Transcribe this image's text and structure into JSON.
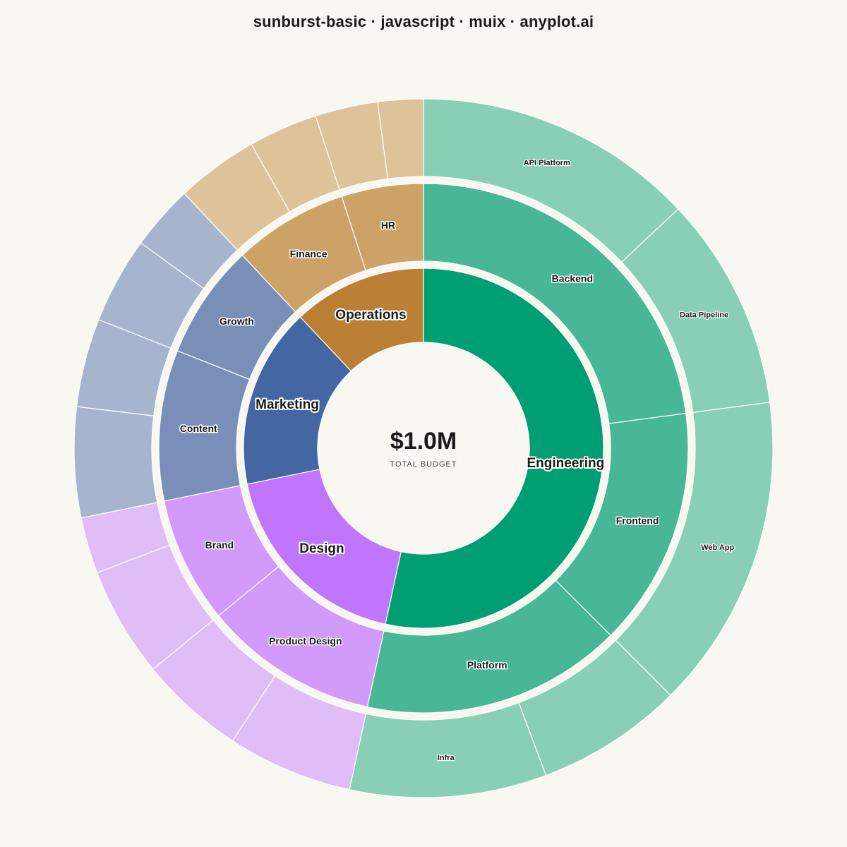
{
  "chart_data": {
    "type": "sunburst",
    "title": "sunburst-basic · javascript · muix · anyplot.ai",
    "center": {
      "value": "$1.0M",
      "caption": "TOTAL BUDGET"
    },
    "colors": {
      "background": "#f9f7f1",
      "separator": "#ffffff",
      "Engineering": [
        "#009e73",
        "#47b796",
        "#89cfb6"
      ],
      "Design": [
        "#c175fc",
        "#d29afa",
        "#e1bdf7"
      ],
      "Marketing": [
        "#4467a3",
        "#798fb8",
        "#a7b4cd"
      ],
      "Operations": [
        "#bb8034",
        "#cca267",
        "#dec39a"
      ]
    },
    "departments": [
      {
        "name": "Engineering",
        "value": 534,
        "teams": [
          {
            "name": "Backend",
            "value": 229,
            "projects": [
              {
                "name": "API Platform",
                "value": 130
              },
              {
                "name": "Data Pipeline",
                "value": 99
              }
            ]
          },
          {
            "name": "Frontend",
            "value": 146,
            "projects": [
              {
                "name": "Web App",
                "value": 146
              }
            ]
          },
          {
            "name": "Platform",
            "value": 159,
            "projects": [
              {
                "name": "",
                "value": 68
              },
              {
                "name": "Infra",
                "value": 91
              }
            ]
          }
        ]
      },
      {
        "name": "Design",
        "value": 184,
        "teams": [
          {
            "name": "Product Design",
            "value": 107,
            "projects": [
              {
                "name": "",
                "value": 58
              },
              {
                "name": "",
                "value": 49
              }
            ]
          },
          {
            "name": "Brand",
            "value": 77,
            "projects": [
              {
                "name": "",
                "value": 51
              },
              {
                "name": "",
                "value": 26
              }
            ]
          }
        ]
      },
      {
        "name": "Marketing",
        "value": 162,
        "teams": [
          {
            "name": "Content",
            "value": 92,
            "projects": [
              {
                "name": "",
                "value": 51
              },
              {
                "name": "",
                "value": 41
              }
            ]
          },
          {
            "name": "Growth",
            "value": 70,
            "projects": [
              {
                "name": "",
                "value": 40
              },
              {
                "name": "",
                "value": 30
              }
            ]
          }
        ]
      },
      {
        "name": "Operations",
        "value": 120,
        "teams": [
          {
            "name": "Finance",
            "value": 70,
            "projects": [
              {
                "name": "",
                "value": 38
              },
              {
                "name": "",
                "value": 32
              }
            ]
          },
          {
            "name": "HR",
            "value": 50,
            "projects": [
              {
                "name": "",
                "value": 29
              },
              {
                "name": "",
                "value": 21
              }
            ]
          }
        ]
      }
    ]
  }
}
